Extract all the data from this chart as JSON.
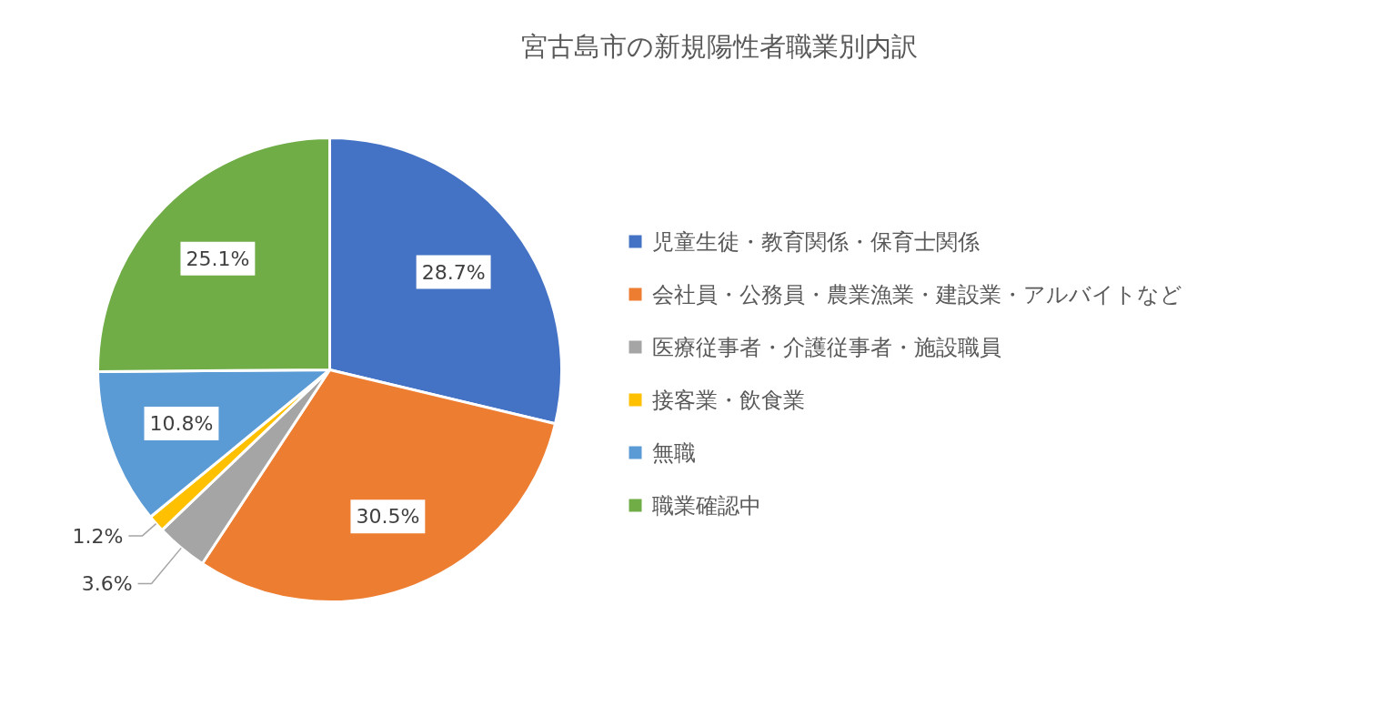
{
  "chart_data": {
    "type": "pie",
    "title": "宮古島市の新規陽性者職業別内訳",
    "categories": [
      "児童生徒・教育関係・保育士関係",
      "会社員・公務員・農業漁業・建設業・アルバイトなど",
      "医療従事者・介護従事者・施設職員",
      "接客業・飲食業",
      "無職",
      "職業確認中"
    ],
    "values": [
      28.7,
      30.5,
      3.6,
      1.2,
      10.8,
      25.1
    ],
    "value_labels": [
      "28.7%",
      "30.5%",
      "3.6%",
      "1.2%",
      "10.8%",
      "25.1%"
    ],
    "colors": [
      "#4472c4",
      "#ed7d31",
      "#a5a5a5",
      "#ffc000",
      "#5b9bd5",
      "#70ad47"
    ],
    "legend": "right"
  }
}
